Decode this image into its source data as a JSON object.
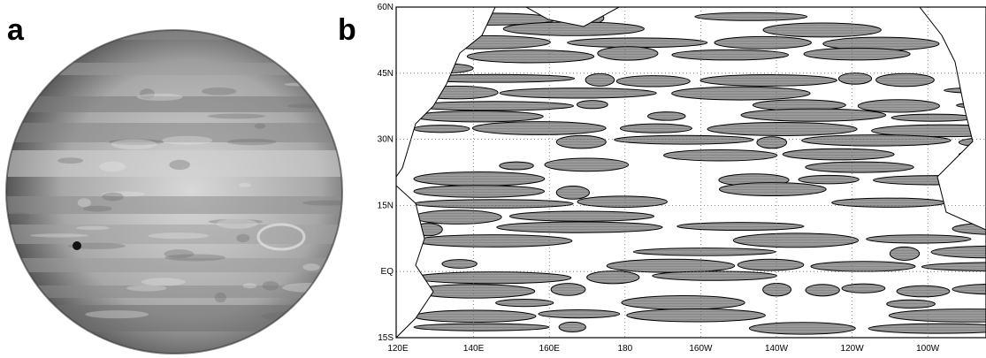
{
  "panels": [
    {
      "label": "a"
    },
    {
      "label": "b",
      "lat_labels": [
        "60N",
        "45N",
        "30N",
        "15N",
        "EQ",
        "15S"
      ],
      "lon_labels": [
        "120E",
        "140E",
        "160E",
        "180",
        "160W",
        "140W",
        "120W",
        "100W"
      ]
    }
  ]
}
